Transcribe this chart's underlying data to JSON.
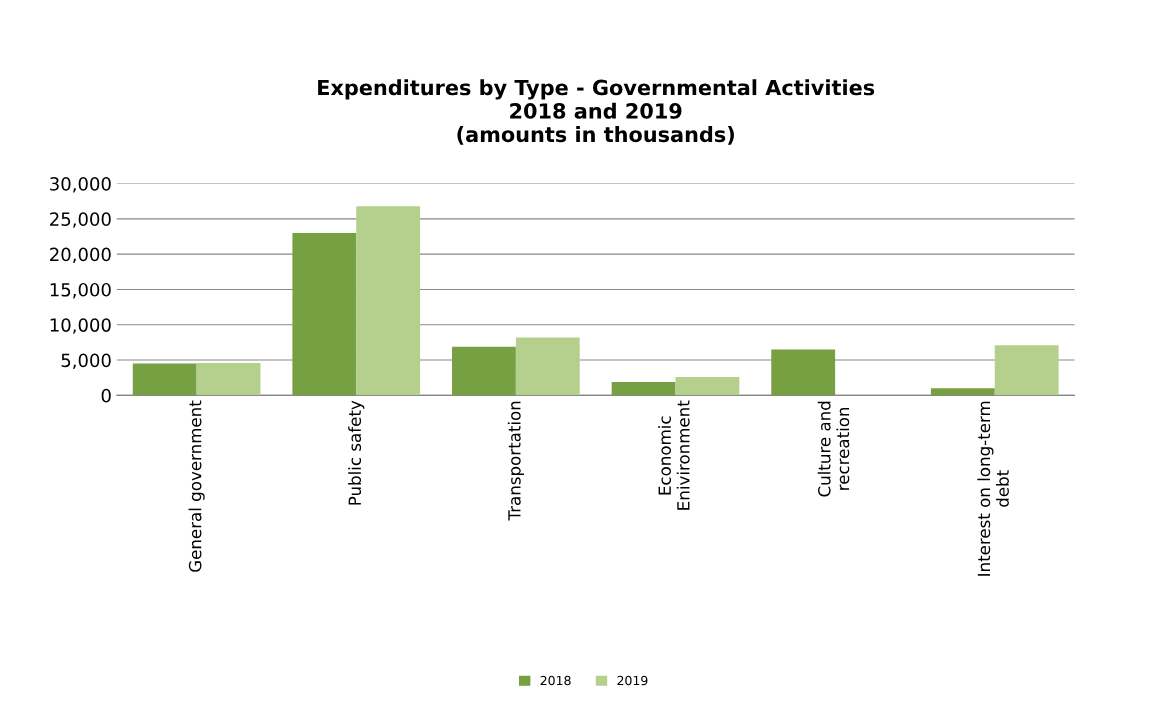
{
  "chart_data": {
    "type": "bar",
    "title": "Expenditures by Type - Governmental Activities\n2018 and 2019\n(amounts in thousands)",
    "categories": [
      "General government",
      "Public safety",
      "Transportation",
      "Economic\nEnivironment",
      "Culture and\nrecreation",
      "Interest on long-term\ndebt"
    ],
    "series": [
      {
        "name": "2018",
        "color": "#77a043",
        "values": [
          4500,
          23000,
          6900,
          1900,
          6500,
          1000
        ]
      },
      {
        "name": "2019",
        "color": "#b5d08c",
        "values": [
          4600,
          26800,
          8200,
          2600,
          0,
          7100
        ]
      }
    ],
    "ylim": [
      0,
      30000
    ],
    "yticks": [
      {
        "value": 0,
        "label": "0"
      },
      {
        "value": 5000,
        "label": "5,000"
      },
      {
        "value": 10000,
        "label": "10,000"
      },
      {
        "value": 15000,
        "label": "15,000"
      },
      {
        "value": 20000,
        "label": "20,000"
      },
      {
        "value": 25000,
        "label": "25,000"
      },
      {
        "value": 30000,
        "label": "30,000"
      }
    ],
    "grid": "y",
    "legend": "bottom"
  }
}
